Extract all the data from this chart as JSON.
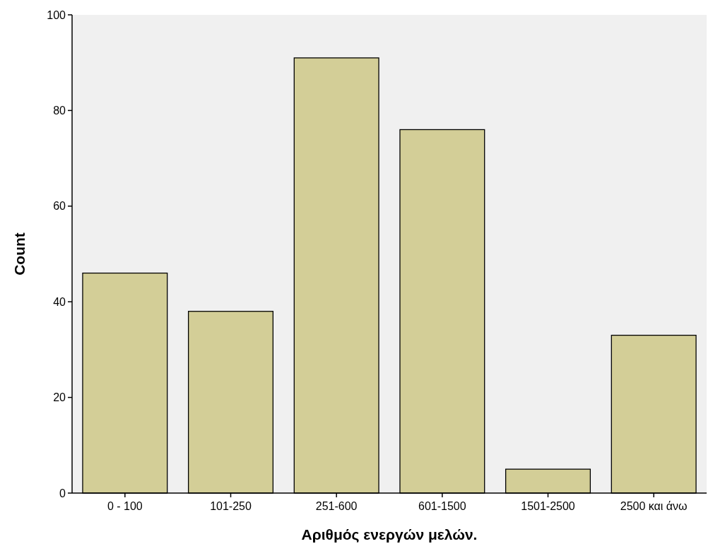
{
  "chart_data": {
    "type": "bar",
    "xlabel": "Αριθμός ενεργών μελών.",
    "ylabel": "Count",
    "categories": [
      "0 - 100",
      "101-250",
      "251-600",
      "601-1500",
      "1501-2500",
      "2500 και άνω"
    ],
    "values": [
      46,
      38,
      91,
      76,
      5,
      33
    ],
    "color": "#d3ce97",
    "ylim": [
      0,
      100
    ],
    "yticks": [
      0,
      20,
      40,
      60,
      80,
      100
    ],
    "grid": false
  }
}
